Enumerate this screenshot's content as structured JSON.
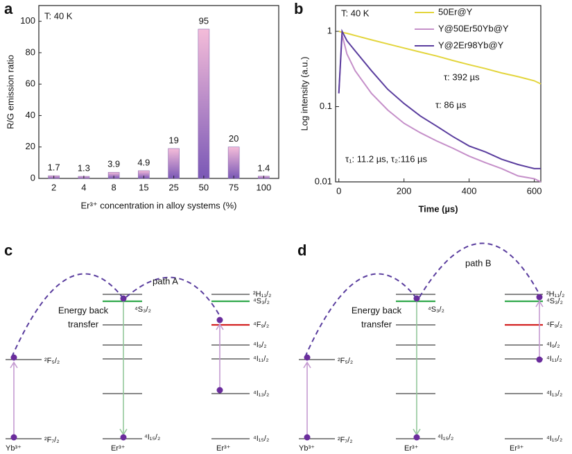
{
  "chart_data": [
    {
      "type": "bar",
      "panel": "a",
      "annotation": "T: 40 K",
      "ylabel": "R/G emission ratio",
      "xlabel": "Er³⁺ concentration in alloy systems (%)",
      "categories": [
        "2",
        "4",
        "8",
        "15",
        "25",
        "50",
        "75",
        "100"
      ],
      "values": [
        1.7,
        1.3,
        3.9,
        4.9,
        19,
        95,
        20,
        1.4
      ],
      "colors": [
        "#f4bcd9",
        "#7a58b6"
      ],
      "ylim": [
        0,
        110
      ],
      "yticks": [
        0,
        20,
        40,
        60,
        80,
        100
      ]
    },
    {
      "type": "line",
      "panel": "b",
      "annotation": "T: 40 K",
      "ylabel": "Log intensity (a.u.)",
      "xlabel": "Time (µs)",
      "log_y": true,
      "legend": "top-right",
      "x": [
        0,
        10,
        25,
        50,
        100,
        150,
        200,
        250,
        300,
        350,
        400,
        450,
        500,
        550,
        600,
        620
      ],
      "series": [
        {
          "name": "50Er@Y",
          "color": "#e3d53c",
          "values": [
            1.0,
            0.97,
            0.94,
            0.88,
            0.77,
            0.68,
            0.6,
            0.53,
            0.47,
            0.41,
            0.36,
            0.32,
            0.28,
            0.25,
            0.22,
            0.2
          ]
        },
        {
          "name": "Y@50Er50Yb@Y",
          "color": "#c58fc9",
          "values": [
            0.15,
            0.9,
            0.5,
            0.3,
            0.15,
            0.09,
            0.06,
            0.045,
            0.035,
            0.028,
            0.022,
            0.018,
            0.015,
            0.012,
            0.011,
            0.01
          ]
        },
        {
          "name": "Y@2Er98Yb@Y",
          "color": "#5a3d9e",
          "values": [
            0.15,
            1.0,
            0.75,
            0.55,
            0.3,
            0.17,
            0.11,
            0.075,
            0.055,
            0.04,
            0.03,
            0.025,
            0.02,
            0.017,
            0.015,
            0.015
          ]
        }
      ],
      "annotations": [
        "τ: 392 µs",
        "τ: 86 µs",
        "τ₁: 11.2 µs, τ₂:116 µs"
      ],
      "xlim": [
        -10,
        620
      ],
      "xticks": [
        0,
        200,
        400,
        600
      ],
      "ylim": [
        0.01,
        2.2
      ],
      "yticks": [
        0.01,
        0.1,
        1
      ]
    }
  ],
  "diagrams": [
    {
      "letter": "c",
      "note": [
        "Energy back",
        "transfer"
      ],
      "path": "path A",
      "yb": {
        "upper": "²F₅/₂",
        "lower": "²F₇/₂",
        "ion": "Yb³⁺"
      },
      "er_mid": {
        "level": "⁴S₃/₂",
        "ground": "⁴I₁₅/₂",
        "ion": "Er³⁺"
      },
      "er_right": {
        "levels": [
          "²H₁₁/₂",
          "⁴S₃/₂",
          "⁴F₉/₂",
          "⁴I₉/₂",
          "⁴I₁₁/₂",
          "⁴I₁₃/₂",
          "⁴I₁₅/₂"
        ],
        "ion": "Er³⁺"
      }
    },
    {
      "letter": "d",
      "note": [
        "Energy back",
        "transfer"
      ],
      "path": "path B",
      "yb": {
        "upper": "²F₅/₂",
        "lower": "²F₇/₂",
        "ion": "Yb³⁺"
      },
      "er_mid": {
        "level": "⁴S₃/₂",
        "ground": "⁴I₁₅/₂",
        "ion": "Er³⁺"
      },
      "er_right": {
        "levels": [
          "²H₁₁/₂",
          "⁴S₃/₂",
          "⁴F₉/₂",
          "⁴I₉/₂",
          "⁴I₁₁/₂",
          "⁴I₁₃/₂",
          "⁴I₁₅/₂"
        ],
        "ion": "Er³⁺"
      }
    }
  ]
}
